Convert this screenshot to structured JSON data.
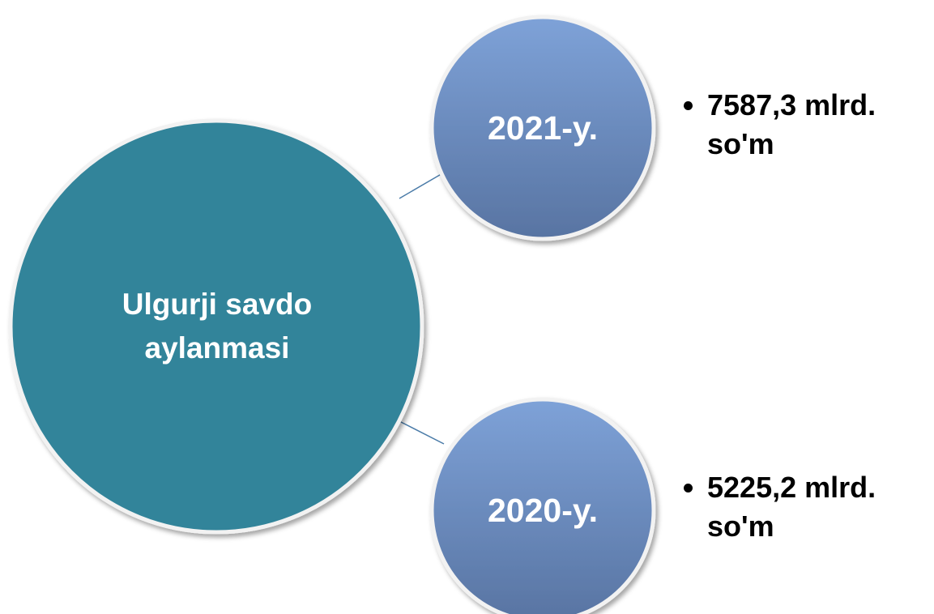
{
  "nodes": [
    {
      "label": "Ulgurji savdo aylanmasi"
    },
    {
      "label": "2021-y.",
      "detail": "7587,3 mlrd. so'm"
    },
    {
      "label": "2020-y.",
      "detail": "5225,2 mlrd. so'm"
    }
  ]
}
